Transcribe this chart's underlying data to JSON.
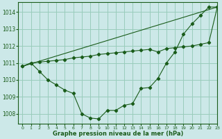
{
  "xlabel": "Graphe pression niveau de la mer (hPa)",
  "background_color": "#cce8e8",
  "grid_color": "#99ccbb",
  "line_color": "#1a5c1a",
  "xlim": [
    -0.5,
    23
  ],
  "ylim": [
    1007.4,
    1014.6
  ],
  "yticks": [
    1008,
    1009,
    1010,
    1011,
    1012,
    1013,
    1014
  ],
  "xticks": [
    0,
    1,
    2,
    3,
    4,
    5,
    6,
    7,
    8,
    9,
    10,
    11,
    12,
    13,
    14,
    15,
    16,
    17,
    18,
    19,
    20,
    21,
    22,
    23
  ],
  "series1_x": [
    0,
    1,
    2,
    3,
    4,
    5,
    6,
    7,
    8,
    9,
    10,
    11,
    12,
    13,
    14,
    15,
    16,
    17,
    18,
    19,
    20,
    21,
    22,
    23
  ],
  "series1_y": [
    1010.8,
    1011.0,
    1010.5,
    1010.0,
    1009.7,
    1009.4,
    1009.2,
    1008.0,
    1007.75,
    1007.7,
    1008.2,
    1008.2,
    1008.5,
    1008.6,
    1009.5,
    1009.55,
    1010.1,
    1011.0,
    1011.65,
    1012.7,
    1013.3,
    1013.8,
    1014.3,
    1014.3
  ],
  "series2_x": [
    0,
    1,
    2,
    3,
    4,
    5,
    6,
    7,
    8,
    9,
    10,
    11,
    12,
    13,
    14,
    15,
    16,
    17,
    18,
    19,
    20,
    21,
    22,
    23
  ],
  "series2_y": [
    1010.8,
    1011.0,
    1011.05,
    1011.1,
    1011.15,
    1011.2,
    1011.3,
    1011.35,
    1011.4,
    1011.5,
    1011.55,
    1011.6,
    1011.65,
    1011.7,
    1011.75,
    1011.8,
    1011.65,
    1011.85,
    1011.9,
    1011.95,
    1012.0,
    1012.1,
    1012.2,
    1014.3
  ],
  "series3_x": [
    0,
    23
  ],
  "series3_y": [
    1010.8,
    1014.3
  ]
}
